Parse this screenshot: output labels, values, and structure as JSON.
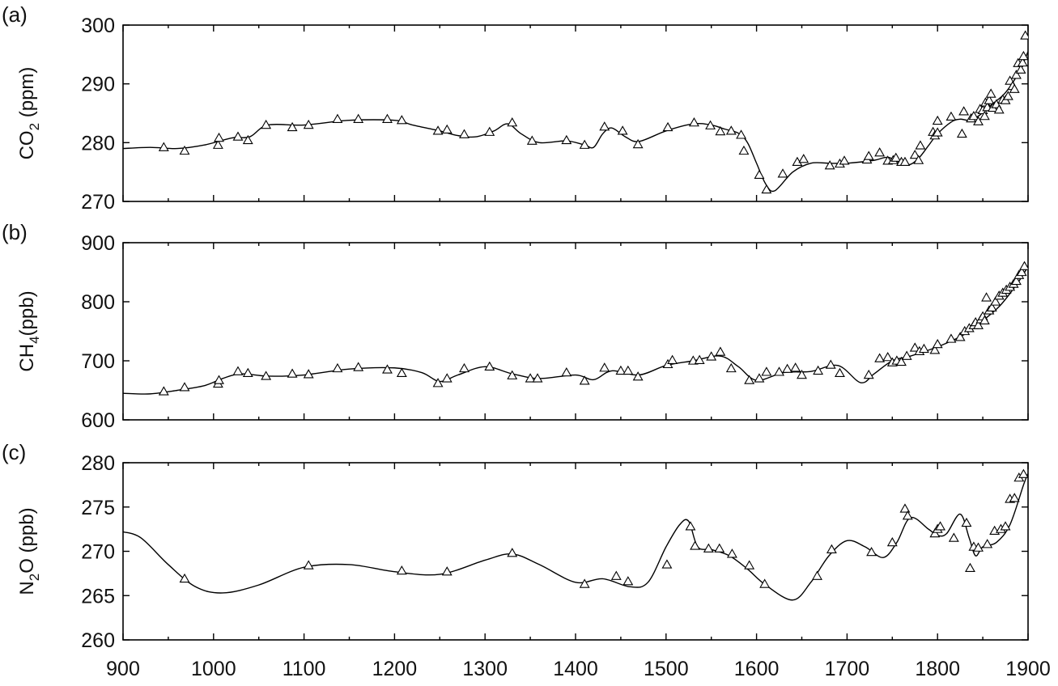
{
  "chart_data": [
    {
      "type": "scatter",
      "panel_label": "(a)",
      "ylabel": {
        "main": "CO",
        "sub": "2",
        "tail": " (ppm)"
      },
      "xlim": [
        900,
        1900
      ],
      "ylim": [
        270,
        300
      ],
      "xticks": [
        900,
        1000,
        1100,
        1200,
        1300,
        1400,
        1500,
        1600,
        1700,
        1800,
        1900
      ],
      "yticks": [
        270,
        280,
        290,
        300
      ],
      "series": [
        {
          "role": "points",
          "marker": "triangle",
          "x": [
            945,
            968,
            1005,
            1006,
            1027,
            1038,
            1058,
            1087,
            1105,
            1137,
            1160,
            1192,
            1208,
            1248,
            1258,
            1277,
            1305,
            1330,
            1352,
            1390,
            1410,
            1432,
            1452,
            1469,
            1502,
            1531,
            1549,
            1560,
            1572,
            1583,
            1586,
            1603,
            1611,
            1629,
            1645,
            1652,
            1681,
            1692,
            1697,
            1722,
            1724,
            1736,
            1745,
            1751,
            1754,
            1760,
            1764,
            1775,
            1779,
            1781,
            1795,
            1797,
            1800,
            1800,
            1815,
            1827,
            1829,
            1837,
            1840,
            1845,
            1847,
            1850,
            1852,
            1853,
            1855,
            1857,
            1859,
            1861,
            1865,
            1868,
            1872,
            1875,
            1878,
            1880,
            1883,
            1885,
            1887,
            1889,
            1892,
            1894,
            1895,
            1897
          ],
          "y": [
            279.2,
            278.6,
            279.6,
            280.8,
            281.0,
            280.4,
            283.0,
            282.6,
            283.0,
            284.0,
            284.0,
            284.0,
            283.8,
            282.0,
            282.2,
            281.4,
            281.8,
            283.4,
            280.3,
            280.4,
            279.6,
            282.7,
            282.0,
            279.7,
            282.6,
            283.4,
            282.9,
            281.9,
            282.0,
            281.3,
            278.6,
            274.5,
            272.0,
            274.7,
            276.7,
            277.2,
            276.1,
            276.4,
            276.9,
            277.1,
            277.7,
            278.3,
            276.9,
            277.0,
            277.4,
            276.7,
            276.7,
            277.9,
            277.0,
            279.5,
            281.8,
            281.2,
            281.7,
            283.7,
            284.4,
            281.5,
            285.3,
            284.1,
            284.5,
            283.6,
            285.7,
            285.5,
            284.5,
            286.8,
            286.0,
            287.2,
            288.3,
            285.9,
            286.5,
            285.6,
            287.3,
            287.2,
            287.9,
            290.5,
            289.6,
            289.1,
            291.5,
            293.5,
            292.4,
            293.6,
            294.7,
            298.2
          ]
        },
        {
          "role": "spline",
          "x": [
            900,
            930,
            960,
            990,
            1020,
            1040,
            1060,
            1100,
            1150,
            1200,
            1220,
            1250,
            1270,
            1290,
            1310,
            1325,
            1340,
            1360,
            1390,
            1410,
            1420,
            1430,
            1440,
            1455,
            1470,
            1500,
            1530,
            1550,
            1565,
            1580,
            1590,
            1600,
            1610,
            1620,
            1640,
            1660,
            1680,
            1700,
            1730,
            1745,
            1760,
            1770,
            1780,
            1790,
            1800,
            1815,
            1825,
            1835,
            1845,
            1860,
            1875,
            1890,
            1900
          ],
          "y": [
            279.0,
            279.2,
            279.0,
            279.6,
            280.8,
            281.0,
            283.0,
            283.0,
            283.8,
            283.8,
            283.0,
            282.0,
            281.2,
            281.0,
            282.0,
            283.2,
            281.5,
            280.0,
            280.3,
            279.6,
            279.2,
            281.5,
            282.5,
            281.0,
            280.2,
            282.0,
            283.2,
            283.0,
            282.3,
            281.6,
            280.0,
            276.5,
            273.0,
            271.8,
            275.0,
            276.5,
            276.5,
            276.5,
            277.0,
            277.5,
            276.5,
            276.3,
            277.5,
            279.5,
            281.5,
            283.5,
            284.0,
            283.8,
            284.5,
            286.5,
            288.5,
            292.0,
            295.5
          ]
        }
      ]
    },
    {
      "type": "scatter",
      "panel_label": "(b)",
      "ylabel": {
        "main": "CH",
        "sub": "4",
        "tail": "(ppb)"
      },
      "xlim": [
        900,
        1900
      ],
      "ylim": [
        600,
        900
      ],
      "xticks": [
        900,
        1000,
        1100,
        1200,
        1300,
        1400,
        1500,
        1600,
        1700,
        1800,
        1900
      ],
      "yticks": [
        600,
        700,
        800,
        900
      ],
      "series": [
        {
          "role": "points",
          "marker": "triangle",
          "x": [
            945,
            968,
            1005,
            1006,
            1027,
            1038,
            1058,
            1087,
            1105,
            1137,
            1160,
            1192,
            1208,
            1248,
            1258,
            1277,
            1305,
            1330,
            1350,
            1358,
            1390,
            1410,
            1432,
            1450,
            1458,
            1469,
            1502,
            1507,
            1530,
            1537,
            1550,
            1560,
            1572,
            1592,
            1603,
            1611,
            1625,
            1634,
            1643,
            1650,
            1668,
            1682,
            1692,
            1724,
            1736,
            1745,
            1750,
            1755,
            1760,
            1766,
            1775,
            1780,
            1785,
            1797,
            1800,
            1815,
            1825,
            1830,
            1835,
            1840,
            1842,
            1845,
            1848,
            1850,
            1852,
            1854,
            1857,
            1860,
            1864,
            1868,
            1872,
            1876,
            1880,
            1884,
            1887,
            1890,
            1893,
            1896
          ],
          "y": [
            648,
            655,
            661,
            667,
            682,
            679,
            674,
            678,
            677,
            687,
            689,
            685,
            679,
            662,
            670,
            687,
            690,
            675,
            670,
            670,
            680,
            666,
            688,
            683,
            683,
            673,
            694,
            701,
            700,
            701,
            707,
            715,
            687,
            667,
            670,
            681,
            681,
            686,
            688,
            676,
            683,
            693,
            679,
            676,
            704,
            706,
            697,
            700,
            698,
            708,
            722,
            716,
            720,
            718,
            728,
            737,
            740,
            750,
            755,
            760,
            765,
            760,
            770,
            775,
            768,
            807,
            785,
            790,
            800,
            810,
            815,
            820,
            825,
            830,
            835,
            845,
            850,
            860
          ]
        },
        {
          "role": "spline",
          "x": [
            900,
            930,
            960,
            990,
            1010,
            1030,
            1060,
            1100,
            1150,
            1200,
            1230,
            1250,
            1270,
            1300,
            1330,
            1360,
            1400,
            1420,
            1440,
            1470,
            1500,
            1530,
            1560,
            1580,
            1600,
            1630,
            1660,
            1690,
            1715,
            1730,
            1750,
            1770,
            1790,
            1810,
            1830,
            1850,
            1870,
            1890,
            1900
          ],
          "y": [
            645,
            644,
            650,
            658,
            670,
            678,
            674,
            676,
            686,
            688,
            680,
            665,
            676,
            690,
            678,
            670,
            676,
            668,
            683,
            676,
            692,
            700,
            708,
            690,
            667,
            680,
            682,
            692,
            663,
            678,
            700,
            708,
            718,
            730,
            745,
            768,
            795,
            835,
            860
          ]
        }
      ]
    },
    {
      "type": "scatter",
      "panel_label": "(c)",
      "ylabel": {
        "main": "N",
        "sub": "2",
        "tail": "O (ppb)"
      },
      "xlim": [
        900,
        1900
      ],
      "ylim": [
        260,
        280
      ],
      "xticks": [
        900,
        1000,
        1100,
        1200,
        1300,
        1400,
        1500,
        1600,
        1700,
        1800,
        1900
      ],
      "yticks": [
        260,
        265,
        270,
        275,
        280
      ],
      "series": [
        {
          "role": "points",
          "marker": "triangle",
          "x": [
            968,
            1105,
            1208,
            1258,
            1330,
            1410,
            1445,
            1458,
            1501,
            1527,
            1532,
            1547,
            1559,
            1573,
            1592,
            1609,
            1667,
            1683,
            1727,
            1750,
            1764,
            1767,
            1797,
            1800,
            1803,
            1818,
            1832,
            1836,
            1840,
            1845,
            1855,
            1863,
            1870,
            1875,
            1880,
            1885,
            1890,
            1895
          ],
          "y": [
            266.9,
            268.4,
            267.8,
            267.7,
            269.8,
            266.3,
            267.2,
            266.6,
            268.5,
            272.8,
            270.6,
            270.3,
            270.3,
            269.7,
            268.4,
            266.3,
            267.2,
            270.2,
            269.9,
            271.0,
            274.8,
            274.0,
            272.0,
            272.5,
            272.8,
            271.5,
            273.2,
            268.1,
            270.5,
            270.4,
            270.8,
            272.3,
            272.5,
            272.8,
            275.9,
            276.0,
            278.3,
            278.7
          ]
        },
        {
          "role": "spline",
          "x": [
            900,
            920,
            950,
            980,
            1010,
            1050,
            1100,
            1150,
            1200,
            1250,
            1300,
            1330,
            1360,
            1400,
            1430,
            1460,
            1480,
            1500,
            1515,
            1525,
            1535,
            1550,
            1570,
            1590,
            1610,
            1640,
            1660,
            1680,
            1700,
            1720,
            1740,
            1755,
            1770,
            1790,
            1800,
            1810,
            1825,
            1835,
            1842,
            1850,
            1865,
            1880,
            1895,
            1900
          ],
          "y": [
            272.2,
            271.5,
            268.5,
            266.0,
            265.3,
            266.2,
            268.2,
            268.5,
            267.7,
            267.4,
            269.0,
            269.7,
            268.5,
            266.5,
            266.9,
            266.0,
            266.5,
            270.5,
            273.0,
            273.4,
            270.5,
            270.2,
            269.5,
            268.0,
            266.2,
            264.5,
            266.5,
            269.5,
            271.2,
            270.5,
            269.3,
            271.0,
            273.8,
            272.5,
            271.8,
            272.0,
            274.2,
            271.5,
            269.5,
            270.5,
            271.0,
            273.0,
            277.5,
            278.8
          ]
        }
      ]
    }
  ]
}
